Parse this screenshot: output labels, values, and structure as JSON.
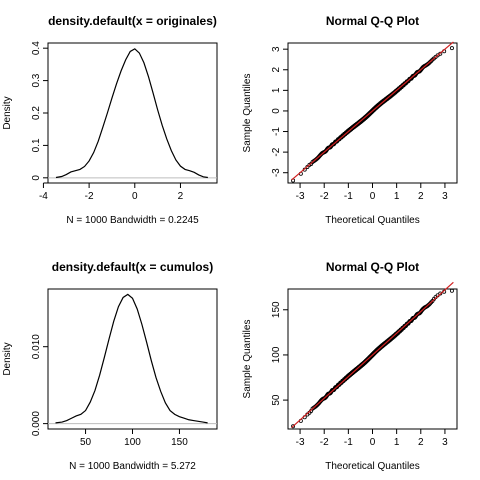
{
  "chart_data": [
    {
      "type": "line",
      "title": "density.default(x = originales)",
      "xlabel": "N = 1000   Bandwidth = 0.2245",
      "ylabel": "Density",
      "xlim": [
        -3.8,
        3.6
      ],
      "ylim": [
        -0.016,
        0.416
      ],
      "xticks": [
        -4,
        -2,
        0,
        2
      ],
      "yticks": [
        0.0,
        0.1,
        0.2,
        0.3,
        0.4
      ],
      "baseline": 0,
      "series": [
        {
          "x": [
            -3.45,
            -3.2,
            -3.0,
            -2.8,
            -2.6,
            -2.4,
            -2.2,
            -2.0,
            -1.8,
            -1.6,
            -1.4,
            -1.2,
            -1.0,
            -0.8,
            -0.6,
            -0.4,
            -0.2,
            0.0,
            0.2,
            0.4,
            0.6,
            0.8,
            1.0,
            1.2,
            1.4,
            1.6,
            1.8,
            2.0,
            2.2,
            2.4,
            2.6,
            2.8,
            3.0,
            3.2
          ],
          "y": [
            0.001,
            0.004,
            0.01,
            0.018,
            0.022,
            0.026,
            0.035,
            0.052,
            0.078,
            0.113,
            0.156,
            0.2,
            0.246,
            0.29,
            0.33,
            0.364,
            0.39,
            0.398,
            0.385,
            0.355,
            0.312,
            0.262,
            0.21,
            0.162,
            0.12,
            0.084,
            0.055,
            0.036,
            0.026,
            0.022,
            0.017,
            0.009,
            0.003,
            0.001
          ]
        }
      ]
    },
    {
      "type": "scatter",
      "title": "Normal Q-Q Plot",
      "xlabel": "Theoretical Quantiles",
      "ylabel": "Sample Quantiles",
      "xlim": [
        -3.5,
        3.5
      ],
      "ylim": [
        -3.5,
        3.3
      ],
      "xticks": [
        -3,
        -2,
        -1,
        0,
        1,
        2,
        3
      ],
      "yticks": [
        -3,
        -2,
        -1,
        0,
        1,
        2,
        3
      ],
      "reference_line": {
        "intercept": 0.0,
        "slope": 1.0,
        "color": "#d22020"
      },
      "points": {
        "n": 1000,
        "mean": 0.0,
        "sd": 1.0,
        "low_tail": [
          -3.38,
          -3.05,
          -2.85,
          -2.72,
          -2.62,
          -2.58
        ],
        "high_tail": [
          2.55,
          2.62,
          2.7,
          2.78,
          2.9,
          3.05
        ]
      }
    },
    {
      "type": "line",
      "title": "density.default(x = cumulos)",
      "xlabel": "N = 1000   Bandwidth = 5.272",
      "ylabel": "Density",
      "xlim": [
        10,
        190
      ],
      "ylim": [
        -0.0007,
        0.0175
      ],
      "xticks": [
        50,
        100,
        150
      ],
      "yticks": [
        0.0,
        0.01
      ],
      "baseline": 0,
      "series": [
        {
          "x": [
            18,
            25,
            30,
            35,
            40,
            45,
            50,
            55,
            60,
            65,
            70,
            75,
            80,
            85,
            90,
            95,
            100,
            105,
            110,
            115,
            120,
            125,
            130,
            135,
            140,
            145,
            150,
            155,
            160,
            165,
            170,
            175,
            180
          ],
          "y": [
            0.0001,
            0.0002,
            0.0004,
            0.0007,
            0.001,
            0.0012,
            0.0017,
            0.0028,
            0.0043,
            0.0063,
            0.0086,
            0.011,
            0.0133,
            0.0152,
            0.0164,
            0.0168,
            0.0163,
            0.0149,
            0.0129,
            0.0106,
            0.0082,
            0.006,
            0.0042,
            0.0027,
            0.0017,
            0.0012,
            0.0009,
            0.0007,
            0.0005,
            0.0004,
            0.0003,
            0.0002,
            0.0001
          ]
        }
      ]
    },
    {
      "type": "scatter",
      "title": "Normal Q-Q Plot",
      "xlabel": "Theoretical Quantiles",
      "ylabel": "Sample Quantiles",
      "xlim": [
        -3.5,
        3.5
      ],
      "ylim": [
        18,
        173
      ],
      "xticks": [
        -3,
        -2,
        -1,
        0,
        1,
        2,
        3
      ],
      "yticks": [
        50,
        100,
        150
      ],
      "reference_line": {
        "intercept": 100.0,
        "slope": 24.0,
        "color": "#d22020"
      },
      "points": {
        "n": 1000,
        "mean": 100.0,
        "sd": 24.0,
        "low_tail": [
          21,
          27,
          31,
          34,
          36,
          38
        ],
        "high_tail": [
          162,
          164,
          166,
          168,
          170,
          171
        ]
      }
    }
  ]
}
